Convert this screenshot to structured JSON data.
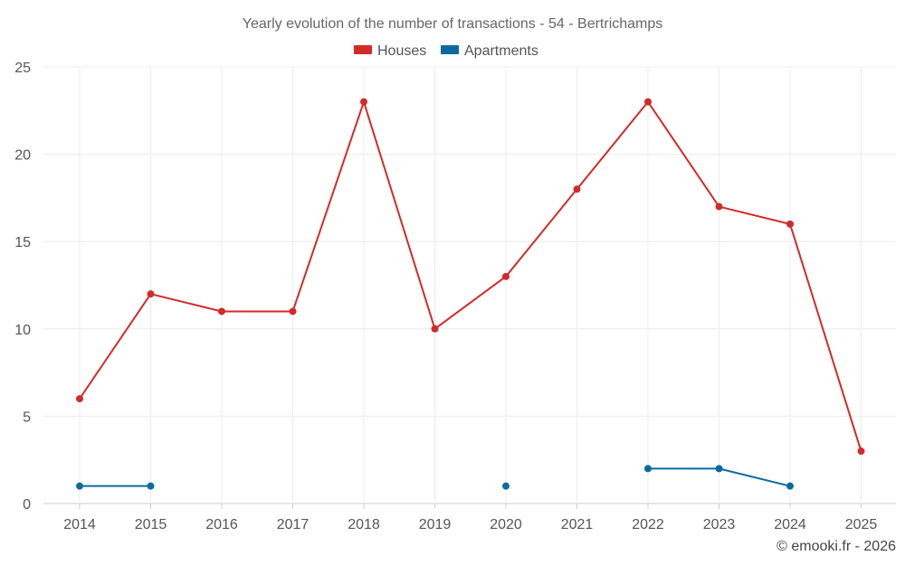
{
  "chart_data": {
    "type": "line",
    "title": "Yearly evolution of the number of transactions - 54 - Bertrichamps",
    "categories": [
      "2014",
      "2015",
      "2016",
      "2017",
      "2018",
      "2019",
      "2020",
      "2021",
      "2022",
      "2023",
      "2024",
      "2025"
    ],
    "series": [
      {
        "name": "Houses",
        "color": "#d32a2a",
        "values": [
          6,
          12,
          11,
          11,
          23,
          10,
          13,
          18,
          23,
          17,
          16,
          3
        ]
      },
      {
        "name": "Apartments",
        "color": "#0d6aa0",
        "values": [
          1,
          1,
          null,
          null,
          null,
          null,
          1,
          null,
          2,
          2,
          1,
          null
        ]
      }
    ],
    "ylim": [
      0,
      25
    ],
    "yticks": [
      0,
      5,
      10,
      15,
      20,
      25
    ],
    "grid": true,
    "legend_position": "top-center",
    "xlabel": "",
    "ylabel": ""
  },
  "credit": "© emooki.fr - 2026"
}
